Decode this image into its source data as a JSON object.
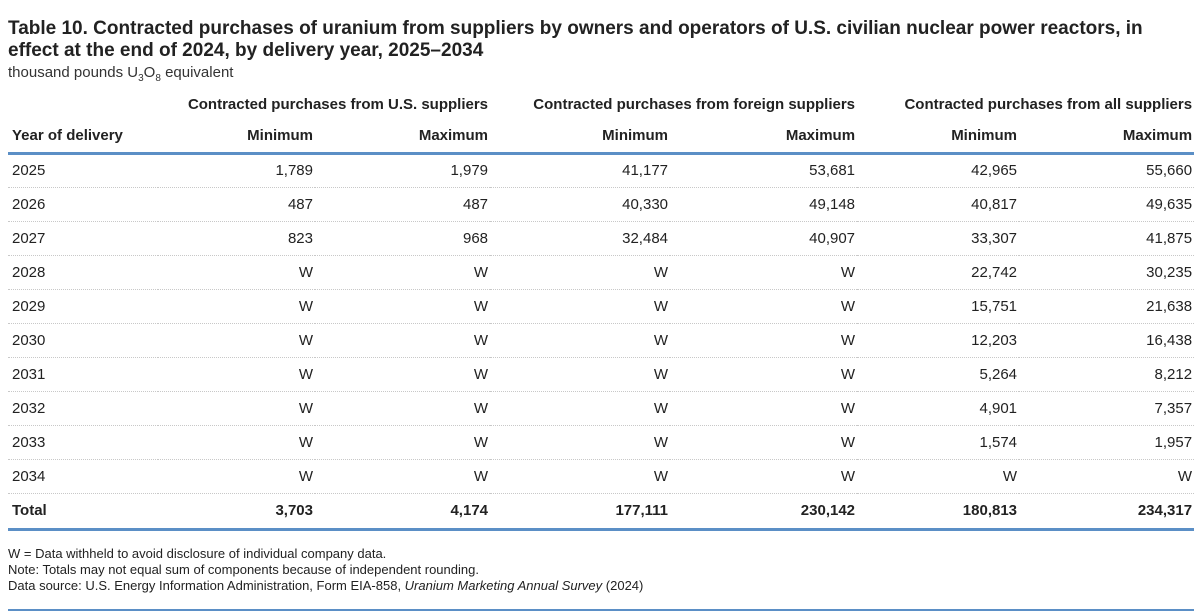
{
  "title": "Table 10. Contracted purchases of uranium from suppliers by owners and operators of U.S. civilian nuclear power reactors, in effect at the end of 2024, by delivery year, 2025–2034",
  "subtitle": {
    "prefix": "thousand pounds U",
    "sub1": "3",
    "mid": "O",
    "sub2": "8",
    "suffix": " equivalent"
  },
  "groups": [
    "Contracted purchases from U.S. suppliers",
    "Contracted purchases from foreign suppliers",
    "Contracted purchases from all suppliers"
  ],
  "columns": [
    "Year of delivery",
    "Minimum",
    "Maximum",
    "Minimum",
    "Maximum",
    "Minimum",
    "Maximum"
  ],
  "rows": [
    [
      "2025",
      "1,789",
      "1,979",
      "41,177",
      "53,681",
      "42,965",
      "55,660"
    ],
    [
      "2026",
      "487",
      "487",
      "40,330",
      "49,148",
      "40,817",
      "49,635"
    ],
    [
      "2027",
      "823",
      "968",
      "32,484",
      "40,907",
      "33,307",
      "41,875"
    ],
    [
      "2028",
      "W",
      "W",
      "W",
      "W",
      "22,742",
      "30,235"
    ],
    [
      "2029",
      "W",
      "W",
      "W",
      "W",
      "15,751",
      "21,638"
    ],
    [
      "2030",
      "W",
      "W",
      "W",
      "W",
      "12,203",
      "16,438"
    ],
    [
      "2031",
      "W",
      "W",
      "W",
      "W",
      "5,264",
      "8,212"
    ],
    [
      "2032",
      "W",
      "W",
      "W",
      "W",
      "4,901",
      "7,357"
    ],
    [
      "2033",
      "W",
      "W",
      "W",
      "W",
      "1,574",
      "1,957"
    ],
    [
      "2034",
      "W",
      "W",
      "W",
      "W",
      "W",
      "W"
    ]
  ],
  "total": [
    "Total",
    "3,703",
    "4,174",
    "177,111",
    "230,142",
    "180,813",
    "234,317"
  ],
  "notes": {
    "withheld": "W = Data withheld to avoid disclosure of individual company data.",
    "note": "Note: Totals may not equal sum of components because of independent rounding.",
    "source_prefix": "Data source: U.S. Energy Information Administration, Form EIA-858, ",
    "source_title": "Uranium Marketing Annual Survey",
    "source_suffix": " (2024)"
  }
}
